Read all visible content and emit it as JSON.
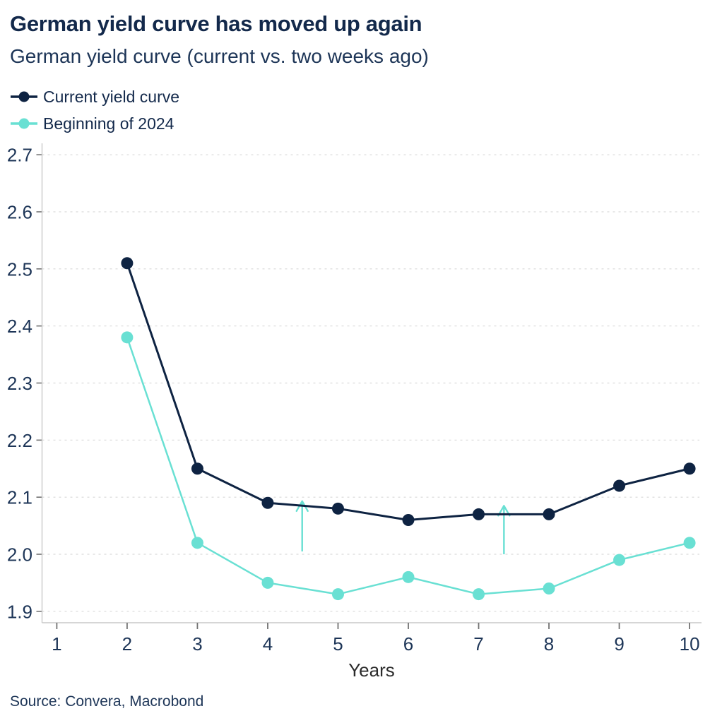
{
  "header": {
    "title": "German yield curve has moved up again",
    "subtitle": "German yield curve (current vs. two weeks ago)"
  },
  "legend": [
    {
      "label": "Current yield curve",
      "color": "#0e2342"
    },
    {
      "label": "Beginning of 2024",
      "color": "#69e0d3"
    }
  ],
  "chart_data": {
    "type": "line",
    "x": [
      2,
      3,
      4,
      5,
      6,
      7,
      8,
      9,
      10
    ],
    "series": [
      {
        "name": "Current yield curve",
        "color": "#0e2342",
        "marker_radius": 8.5,
        "line_width": 3,
        "values": [
          2.51,
          2.15,
          2.09,
          2.08,
          2.06,
          2.07,
          2.07,
          2.12,
          2.15
        ]
      },
      {
        "name": "Beginning of 2024",
        "color": "#69e0d3",
        "marker_radius": 8.5,
        "line_width": 2.5,
        "values": [
          2.38,
          2.02,
          1.95,
          1.93,
          1.96,
          1.93,
          1.94,
          1.99,
          2.02
        ]
      }
    ],
    "title": "German yield curve has moved up again",
    "subtitle": "German yield curve (current vs. two weeks ago)",
    "xlabel": "Years",
    "ylabel": "",
    "x_ticks": [
      1,
      2,
      3,
      4,
      5,
      6,
      7,
      8,
      9,
      10
    ],
    "y_ticks": [
      1.9,
      2.0,
      2.1,
      2.2,
      2.3,
      2.4,
      2.5,
      2.6,
      2.7
    ],
    "xlim": [
      0.79,
      10.17
    ],
    "ylim": [
      1.88,
      2.72
    ],
    "grid": "horizontal-dashed",
    "legend_position": "top-left",
    "annotations": [
      {
        "type": "arrow-up",
        "x": 4.49,
        "y_from": 2.005,
        "y_to": 2.093,
        "color": "#69e0d3"
      },
      {
        "type": "arrow-up",
        "x": 7.36,
        "y_from": 2.0,
        "y_to": 2.085,
        "color": "#69e0d3"
      }
    ]
  },
  "footer": {
    "source": "Source: Convera, Macrobond"
  },
  "colors": {
    "text_navy": "#13294b",
    "tick_label": "#1d3557",
    "xlabel_color": "#2b2b2b",
    "grid": "#d9d9d9",
    "axis": "#c9c9c9",
    "tick_mark": "#737373"
  }
}
